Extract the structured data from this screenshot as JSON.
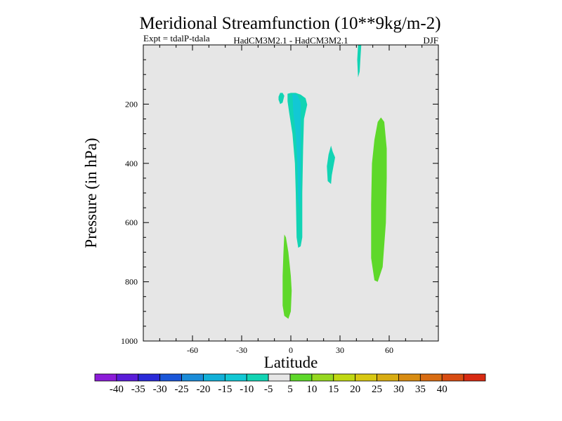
{
  "chart_data": {
    "type": "contour",
    "title": "Meridional Streamfunction (10**9kg/m-2)",
    "subtitle_left": "Expt = tdalP-tdala",
    "subtitle_center": "HadCM3M2.1 - HadCM3M2.1",
    "subtitle_right": "DJF",
    "xlabel": "Latitude",
    "ylabel": "Pressure (in hPa)",
    "xlim": [
      -90,
      90
    ],
    "ylim": [
      1000,
      0
    ],
    "x_ticks": [
      -60,
      -30,
      0,
      30,
      60
    ],
    "x_tick_labels": [
      "-60",
      "-30",
      "0",
      "30",
      "60"
    ],
    "y_ticks": [
      200,
      400,
      600,
      800,
      1000
    ],
    "y_tick_labels": [
      "200",
      "400",
      "600",
      "800",
      "1000"
    ],
    "background_color": "#e6e6e6",
    "regions": [
      {
        "name": "region-upper-cyan-40n",
        "level": "-10..-5",
        "color": "#12d4b4",
        "points": [
          [
            41,
            0
          ],
          [
            43,
            0
          ],
          [
            42.5,
            40
          ],
          [
            42,
            90
          ],
          [
            41,
            110
          ],
          [
            40.5,
            50
          ]
        ]
      },
      {
        "name": "region-cyan-small-8s",
        "level": "-10..-5",
        "color": "#12d4b4",
        "points": [
          [
            -7.5,
            175
          ],
          [
            -6.5,
            162
          ],
          [
            -5,
            162
          ],
          [
            -4,
            172
          ],
          [
            -5,
            195
          ],
          [
            -6.5,
            200
          ],
          [
            -7.5,
            185
          ]
        ]
      },
      {
        "name": "region-cyan-column-equator",
        "level": "-10..-5",
        "color": "#12d4b4",
        "points": [
          [
            -2,
            165
          ],
          [
            0,
            162
          ],
          [
            3,
            162
          ],
          [
            6,
            168
          ],
          [
            9,
            180
          ],
          [
            10,
            202
          ],
          [
            8,
            250
          ],
          [
            7.5,
            350
          ],
          [
            7,
            500
          ],
          [
            7,
            650
          ],
          [
            6,
            680
          ],
          [
            4.5,
            685
          ],
          [
            3.5,
            650
          ],
          [
            3,
            500
          ],
          [
            2.5,
            400
          ],
          [
            1,
            300
          ],
          [
            -1,
            230
          ],
          [
            -2,
            190
          ]
        ]
      },
      {
        "name": "region-cyan-inner-core",
        "level": "-15..-10",
        "color": "#12c8d4",
        "points": [
          [
            1,
            165
          ],
          [
            4,
            170
          ],
          [
            6,
            195
          ],
          [
            6,
            300
          ],
          [
            6,
            500
          ],
          [
            5.5,
            560
          ],
          [
            4.5,
            520
          ],
          [
            4,
            400
          ],
          [
            3,
            300
          ],
          [
            1.5,
            230
          ]
        ]
      },
      {
        "name": "region-cyan-small-23n",
        "level": "-10..-5",
        "color": "#12d4b4",
        "points": [
          [
            25.5,
            360
          ],
          [
            27,
            380
          ],
          [
            25,
            440
          ],
          [
            24.5,
            470
          ],
          [
            22.5,
            460
          ],
          [
            22,
            410
          ],
          [
            23,
            370
          ],
          [
            24.5,
            340
          ]
        ]
      },
      {
        "name": "region-green-column-55n",
        "level": "5..10",
        "color": "#5ed82a",
        "points": [
          [
            55,
            245
          ],
          [
            57,
            260
          ],
          [
            58.5,
            350
          ],
          [
            58.5,
            450
          ],
          [
            58,
            600
          ],
          [
            56,
            750
          ],
          [
            53,
            800
          ],
          [
            51,
            795
          ],
          [
            49,
            720
          ],
          [
            49,
            540
          ],
          [
            49.5,
            400
          ],
          [
            51,
            320
          ],
          [
            53,
            260
          ]
        ]
      },
      {
        "name": "region-green-low-2s",
        "level": "5..10",
        "color": "#5ed82a",
        "points": [
          [
            -4,
            640
          ],
          [
            -3,
            650
          ],
          [
            -1.5,
            700
          ],
          [
            0,
            780
          ],
          [
            0.5,
            830
          ],
          [
            0,
            900
          ],
          [
            -1.5,
            925
          ],
          [
            -4,
            915
          ],
          [
            -5,
            880
          ],
          [
            -5,
            780
          ],
          [
            -4.5,
            700
          ]
        ]
      }
    ],
    "colorbar": {
      "colors": [
        "#8c1cd8",
        "#5a1cd8",
        "#2a2ad8",
        "#1a56d8",
        "#1a8cd8",
        "#12b0d8",
        "#12c8d4",
        "#12d4b4",
        "#e6e6e6",
        "#5ed82a",
        "#96d820",
        "#c0d812",
        "#d8c812",
        "#d8ac12",
        "#d88c12",
        "#d86c12",
        "#d84c12",
        "#d82a12"
      ],
      "labels": [
        "-40",
        "-35",
        "-30",
        "-25",
        "-20",
        "-15",
        "-10",
        "-5",
        "5",
        "10",
        "15",
        "20",
        "25",
        "30",
        "35",
        "40"
      ]
    }
  }
}
